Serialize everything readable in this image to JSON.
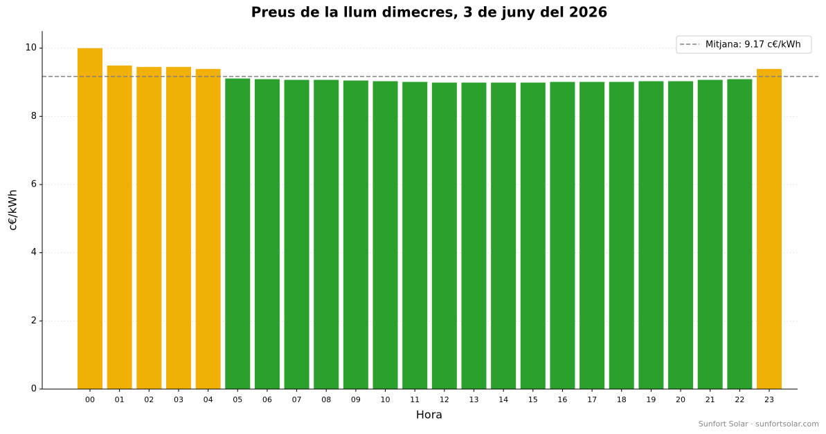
{
  "chart_data": {
    "type": "bar",
    "title": "Preus de la llum dimecres, 3 de juny del 2026",
    "xlabel": "Hora",
    "ylabel": "c€/kWh",
    "categories": [
      "00",
      "01",
      "02",
      "03",
      "04",
      "05",
      "06",
      "07",
      "08",
      "09",
      "10",
      "11",
      "12",
      "13",
      "14",
      "15",
      "16",
      "17",
      "18",
      "19",
      "20",
      "21",
      "22",
      "23"
    ],
    "values": [
      10.0,
      9.49,
      9.45,
      9.45,
      9.39,
      9.11,
      9.09,
      9.07,
      9.07,
      9.05,
      9.03,
      9.01,
      8.99,
      8.99,
      8.99,
      8.99,
      9.01,
      9.01,
      9.01,
      9.03,
      9.03,
      9.07,
      9.09,
      9.39
    ],
    "colors": [
      "#f0b005",
      "#f0b005",
      "#f0b005",
      "#f0b005",
      "#f0b005",
      "#2ca02c",
      "#2ca02c",
      "#2ca02c",
      "#2ca02c",
      "#2ca02c",
      "#2ca02c",
      "#2ca02c",
      "#2ca02c",
      "#2ca02c",
      "#2ca02c",
      "#2ca02c",
      "#2ca02c",
      "#2ca02c",
      "#2ca02c",
      "#2ca02c",
      "#2ca02c",
      "#2ca02c",
      "#2ca02c",
      "#f0b005"
    ],
    "reference_line": {
      "value": 9.17,
      "label": "Mitjana: 9.17 c€/kWh",
      "color": "#808080"
    },
    "ylim": [
      0,
      10.5
    ],
    "yticks": [
      0,
      2,
      4,
      6,
      8,
      10
    ],
    "grid": true,
    "legend": "upper right",
    "footer": "Sunfort Solar · sunfortsolar.com"
  }
}
